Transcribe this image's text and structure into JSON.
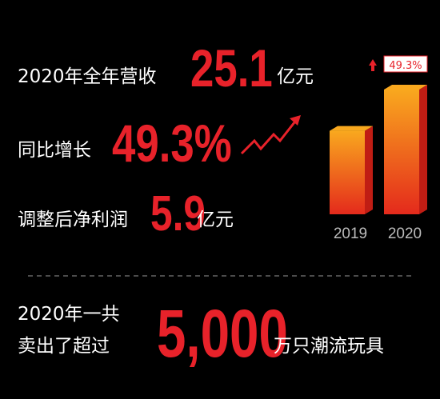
{
  "stats": [
    {
      "label": "2020年全年营收",
      "value": "25.1",
      "unit": "亿元"
    },
    {
      "label": "同比增长",
      "value": "49.3%"
    },
    {
      "label": "调整后净利润",
      "value": "5.9",
      "unit": "亿元"
    }
  ],
  "footer": {
    "line1": "2020年一共",
    "line2": "卖出了超过",
    "value": "5,000",
    "unit": "万只潮流玩具"
  },
  "chart_data": {
    "type": "bar",
    "categories": [
      "2019",
      "2020"
    ],
    "values": [
      16.8,
      25.1
    ],
    "annotation": "49.3%",
    "color_top": "#f9a81e",
    "color_bottom": "#e42a1c",
    "side_color": "#c01d14"
  }
}
